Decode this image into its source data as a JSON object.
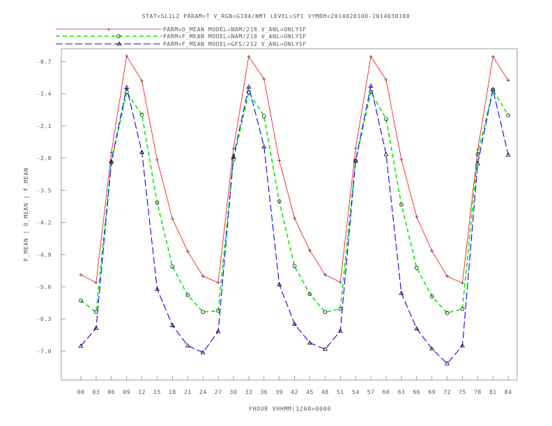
{
  "chart_data": {
    "type": "line",
    "title": "STAT=SL1L2 PARAM=T V_RGN=G104/NMT LEVEL=SFC VYMDH=2014020100-2014030100",
    "xlabel": "FHOUR VHHMM(1200>0000",
    "ylabel": "F_MEAN | O_MEAN | F_MEAN",
    "categories": [
      "00",
      "03",
      "06",
      "09",
      "12",
      "15",
      "18",
      "21",
      "24",
      "27",
      "30",
      "33",
      "36",
      "39",
      "42",
      "45",
      "48",
      "51",
      "54",
      "57",
      "60",
      "63",
      "66",
      "69",
      "72",
      "75",
      "78",
      "81",
      "84"
    ],
    "yticks": [
      "-0.7",
      "-1.4",
      "-2.1",
      "-2.8",
      "-3.5",
      "-4.2",
      "-4.9",
      "-5.6",
      "-6.3",
      "-7.0"
    ],
    "ylim": [
      -7.63,
      -0.42
    ],
    "grid": false,
    "legend_position": "top",
    "series": [
      {
        "name": "PARM=O_MEAN MODEL=NAM/218 V_ANL=ONLYSF",
        "color": "#ff0000",
        "dash": "solid",
        "marker": "plus",
        "values": [
          -5.34,
          -5.51,
          -2.68,
          -0.58,
          -1.12,
          -2.84,
          -4.12,
          -4.83,
          -5.37,
          -5.51,
          -2.59,
          -0.59,
          -1.08,
          -2.85,
          -4.11,
          -4.81,
          -5.34,
          -5.5,
          -2.59,
          -0.59,
          -1.1,
          -2.83,
          -4.08,
          -4.82,
          -5.37,
          -5.52,
          -2.62,
          -0.59,
          -1.11
        ]
      },
      {
        "name": "PARM=F_MEAN MODEL=NAM/218 V_ANL=ONLYSF",
        "color": "#00ee00",
        "dash": "dashed",
        "marker": "circle",
        "values": [
          -5.9,
          -6.15,
          -2.9,
          -1.36,
          -1.86,
          -3.77,
          -5.16,
          -5.78,
          -6.15,
          -6.12,
          -2.83,
          -1.37,
          -1.89,
          -3.74,
          -5.15,
          -5.76,
          -6.15,
          -6.08,
          -2.86,
          -1.36,
          -1.95,
          -3.81,
          -5.19,
          -5.81,
          -6.17,
          -6.08,
          -2.72,
          -1.31,
          -1.87
        ]
      },
      {
        "name": "PARM=F_MEAN MODEL=GFS/212 V_ANL=ONLYSF",
        "color": "#0000ff",
        "dash": "dashed",
        "marker": "triangle",
        "values": [
          -6.89,
          -6.5,
          -2.87,
          -1.26,
          -2.67,
          -5.65,
          -6.44,
          -6.88,
          -7.03,
          -6.57,
          -2.77,
          -1.25,
          -2.55,
          -5.55,
          -6.41,
          -6.82,
          -6.96,
          -6.56,
          -2.86,
          -1.23,
          -2.72,
          -5.74,
          -6.51,
          -6.95,
          -7.27,
          -6.88,
          -2.92,
          -1.31,
          -2.73
        ]
      }
    ]
  }
}
